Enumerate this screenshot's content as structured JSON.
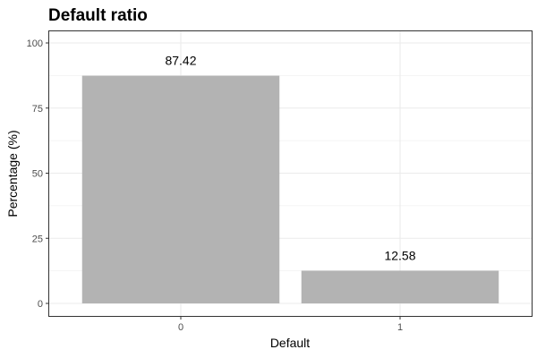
{
  "chart_data": {
    "type": "bar",
    "title": "Default ratio",
    "xlabel": "Default",
    "ylabel": "Percentage (%)",
    "categories": [
      "0",
      "1"
    ],
    "values": [
      87.42,
      12.58
    ],
    "data_labels": [
      "87.42",
      "12.58"
    ],
    "ylim": [
      0,
      100
    ],
    "yticks": [
      0,
      25,
      50,
      75,
      100
    ],
    "ytick_labels": [
      "0",
      "25",
      "50",
      "75",
      "100"
    ],
    "grid": true,
    "bar_color": "#b3b3b3",
    "grid_color": "#ebebeb",
    "panel_border_color": "#333333"
  }
}
